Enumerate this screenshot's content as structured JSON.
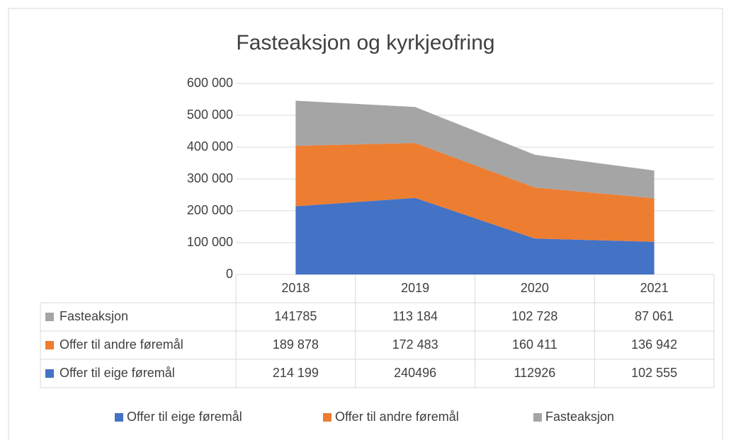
{
  "chart_data": {
    "type": "stacked-area",
    "title": "Fasteaksjon og kyrkjeofring",
    "categories": [
      "2018",
      "2019",
      "2020",
      "2021"
    ],
    "series": [
      {
        "name": "Offer til eige føremål",
        "color": "#4472c4",
        "values": [
          214199,
          240496,
          112926,
          102555
        ],
        "value_labels": [
          "214 199",
          "240496",
          "112926",
          "102 555"
        ]
      },
      {
        "name": "Offer til andre føremål",
        "color": "#ed7d31",
        "values": [
          189878,
          172483,
          160411,
          136942
        ],
        "value_labels": [
          "189 878",
          "172 483",
          "160 411",
          "136 942"
        ]
      },
      {
        "name": "Fasteaksjon",
        "color": "#a5a5a5",
        "values": [
          141785,
          113184,
          102728,
          87061
        ],
        "value_labels": [
          "141785",
          "113 184",
          "102 728",
          "87 061"
        ]
      }
    ],
    "ylim": [
      0,
      600000
    ],
    "yticks": [
      0,
      {
        "value": 100000,
        "label": "100 000"
      },
      {
        "value": 200000,
        "label": "200 000"
      },
      {
        "value": 300000,
        "label": "300 000"
      },
      {
        "value": 400000,
        "label": "400 000"
      },
      {
        "value": 500000,
        "label": "500 000"
      },
      {
        "value": 600000,
        "label": "600 000"
      }
    ],
    "grid": true,
    "legend": "bottom",
    "data_table": true
  }
}
